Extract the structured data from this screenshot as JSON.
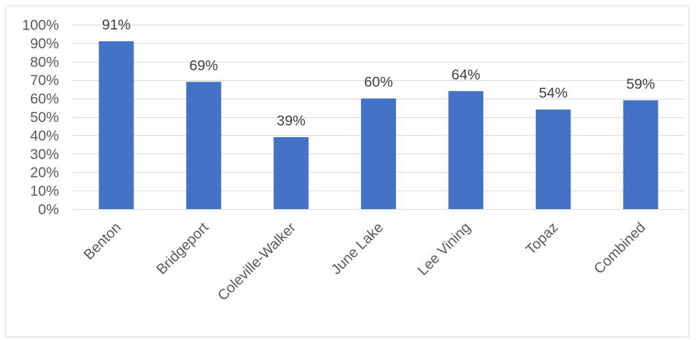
{
  "chart_data": {
    "type": "bar",
    "title": "",
    "xlabel": "",
    "ylabel": "",
    "categories": [
      "Benton",
      "Bridgeport",
      "Coleville-Walker",
      "June Lake",
      "Lee Vining",
      "Topaz",
      "Combined"
    ],
    "values": [
      91,
      69,
      39,
      60,
      64,
      54,
      59
    ],
    "data_labels": [
      "91%",
      "69%",
      "39%",
      "60%",
      "64%",
      "54%",
      "59%"
    ],
    "ylim": [
      0,
      100
    ],
    "y_ticks": [
      0,
      10,
      20,
      30,
      40,
      50,
      60,
      70,
      80,
      90,
      100
    ],
    "y_tick_labels": [
      "0%",
      "10%",
      "20%",
      "30%",
      "40%",
      "50%",
      "60%",
      "70%",
      "80%",
      "90%",
      "100%"
    ],
    "grid": true,
    "legend": "none",
    "bar_color": "#4472c4",
    "gridline_color": "#d9d9d9"
  }
}
